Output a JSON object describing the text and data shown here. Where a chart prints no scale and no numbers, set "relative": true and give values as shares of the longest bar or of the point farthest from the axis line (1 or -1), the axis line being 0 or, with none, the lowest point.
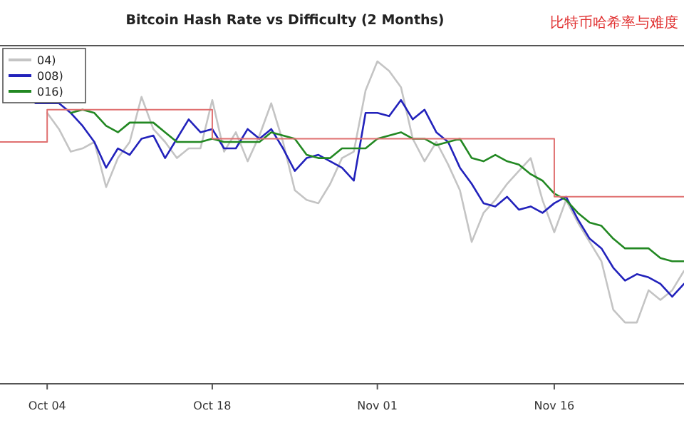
{
  "chart_data": {
    "type": "line",
    "title": "Bitcoin Hash Rate vs Difficulty (2 Months)",
    "annotations": [
      "比特币哈希率与难度"
    ],
    "relative": true,
    "legend": "top left",
    "xlim": [
      "--09-30",
      "--11-27"
    ],
    "xticks": [
      {
        "value": "--10-04",
        "label": "Oct 04"
      },
      {
        "value": "--10-18",
        "label": "Oct 18"
      },
      {
        "value": "--11-01",
        "label": "Nov 01"
      },
      {
        "value": "--11-16",
        "label": "Nov 16"
      }
    ],
    "series": [
      {
        "name": "04)",
        "color": "#c4c4c4",
        "x": [
          "--10-04",
          "--10-05",
          "--10-06",
          "--10-07",
          "--10-08",
          "--10-09",
          "--10-10",
          "--10-11",
          "--10-12",
          "--10-13",
          "--10-14",
          "--10-15",
          "--10-16",
          "--10-17",
          "--10-18",
          "--10-19",
          "--10-20",
          "--10-21",
          "--10-22",
          "--10-23",
          "--10-24",
          "--10-25",
          "--10-26",
          "--10-27",
          "--10-28",
          "--10-29",
          "--10-30",
          "--10-31",
          "--11-01",
          "--11-02",
          "--11-03",
          "--11-04",
          "--11-05",
          "--11-06",
          "--11-07",
          "--11-08",
          "--11-09",
          "--11-10",
          "--11-11",
          "--11-12",
          "--11-13",
          "--11-14",
          "--11-15",
          "--11-16",
          "--11-17",
          "--11-18",
          "--11-19",
          "--11-20",
          "--11-21",
          "--11-22",
          "--11-23",
          "--11-24",
          "--11-25",
          "--11-26",
          "--11-27"
        ],
        "values": [
          0.84,
          0.79,
          0.72,
          0.73,
          0.75,
          0.61,
          0.7,
          0.75,
          0.89,
          0.79,
          0.75,
          0.7,
          0.73,
          0.73,
          0.88,
          0.72,
          0.78,
          0.69,
          0.77,
          0.87,
          0.75,
          0.6,
          0.57,
          0.56,
          0.62,
          0.7,
          0.72,
          0.91,
          1.0,
          0.97,
          0.92,
          0.76,
          0.69,
          0.75,
          0.68,
          0.6,
          0.44,
          0.53,
          0.57,
          0.62,
          0.66,
          0.7,
          0.57,
          0.47,
          0.57,
          0.5,
          0.44,
          0.38,
          0.23,
          0.19,
          0.19,
          0.29,
          0.26,
          0.29,
          0.35
        ]
      },
      {
        "name": "008)",
        "color": "#2222bb",
        "x": [
          "--10-03",
          "--10-05",
          "--10-06",
          "--10-07",
          "--10-08",
          "--10-09",
          "--10-10",
          "--10-11",
          "--10-12",
          "--10-13",
          "--10-14",
          "--10-15",
          "--10-16",
          "--10-17",
          "--10-18",
          "--10-19",
          "--10-20",
          "--10-21",
          "--10-22",
          "--10-23",
          "--10-24",
          "--10-25",
          "--10-26",
          "--10-27",
          "--10-28",
          "--10-29",
          "--10-30",
          "--10-31",
          "--11-01",
          "--11-02",
          "--11-03",
          "--11-04",
          "--11-05",
          "--11-06",
          "--11-07",
          "--11-08",
          "--11-09",
          "--11-10",
          "--11-11",
          "--11-12",
          "--11-13",
          "--11-14",
          "--11-15",
          "--11-16",
          "--11-17",
          "--11-18",
          "--11-19",
          "--11-20",
          "--11-21",
          "--11-22",
          "--11-23",
          "--11-24",
          "--11-25",
          "--11-26",
          "--11-27"
        ],
        "values": [
          0.87,
          0.87,
          0.84,
          0.8,
          0.75,
          0.67,
          0.73,
          0.71,
          0.76,
          0.77,
          0.7,
          0.76,
          0.82,
          0.78,
          0.79,
          0.73,
          0.73,
          0.79,
          0.76,
          0.79,
          0.73,
          0.66,
          0.7,
          0.71,
          0.69,
          0.67,
          0.63,
          0.84,
          0.84,
          0.83,
          0.88,
          0.82,
          0.85,
          0.78,
          0.75,
          0.67,
          0.62,
          0.56,
          0.55,
          0.58,
          0.54,
          0.55,
          0.53,
          0.56,
          0.58,
          0.51,
          0.45,
          0.42,
          0.36,
          0.32,
          0.34,
          0.33,
          0.31,
          0.27,
          0.31
        ]
      },
      {
        "name": "016)",
        "color": "#228822",
        "x": [
          "--10-06",
          "--10-07",
          "--10-08",
          "--10-09",
          "--10-10",
          "--10-11",
          "--10-12",
          "--10-13",
          "--10-14",
          "--10-15",
          "--10-16",
          "--10-17",
          "--10-18",
          "--10-19",
          "--10-20",
          "--10-21",
          "--10-22",
          "--10-23",
          "--10-24",
          "--10-25",
          "--10-26",
          "--10-27",
          "--10-28",
          "--10-29",
          "--10-30",
          "--10-31",
          "--11-01",
          "--11-02",
          "--11-03",
          "--11-04",
          "--11-05",
          "--11-06",
          "--11-07",
          "--11-08",
          "--11-09",
          "--11-10",
          "--11-11",
          "--11-12",
          "--11-13",
          "--11-14",
          "--11-15",
          "--11-16",
          "--11-17",
          "--11-18",
          "--11-19",
          "--11-20",
          "--11-21",
          "--11-22",
          "--11-23",
          "--11-24",
          "--11-25",
          "--11-26",
          "--11-27"
        ],
        "values": [
          0.84,
          0.85,
          0.84,
          0.8,
          0.78,
          0.81,
          0.81,
          0.81,
          0.78,
          0.75,
          0.75,
          0.75,
          0.76,
          0.75,
          0.75,
          0.75,
          0.75,
          0.78,
          0.77,
          0.76,
          0.71,
          0.7,
          0.7,
          0.73,
          0.73,
          0.73,
          0.76,
          0.77,
          0.78,
          0.76,
          0.76,
          0.74,
          0.75,
          0.76,
          0.7,
          0.69,
          0.71,
          0.69,
          0.68,
          0.65,
          0.63,
          0.59,
          0.57,
          0.53,
          0.5,
          0.49,
          0.45,
          0.42,
          0.42,
          0.42,
          0.39,
          0.38,
          0.38
        ]
      },
      {
        "type": "step",
        "color": "#e07070",
        "x": [
          "--09-30",
          "--10-04",
          "--10-18",
          "--11-16",
          "--11-27"
        ],
        "values": [
          0.75,
          0.85,
          0.76,
          0.58,
          0.58
        ]
      }
    ]
  }
}
